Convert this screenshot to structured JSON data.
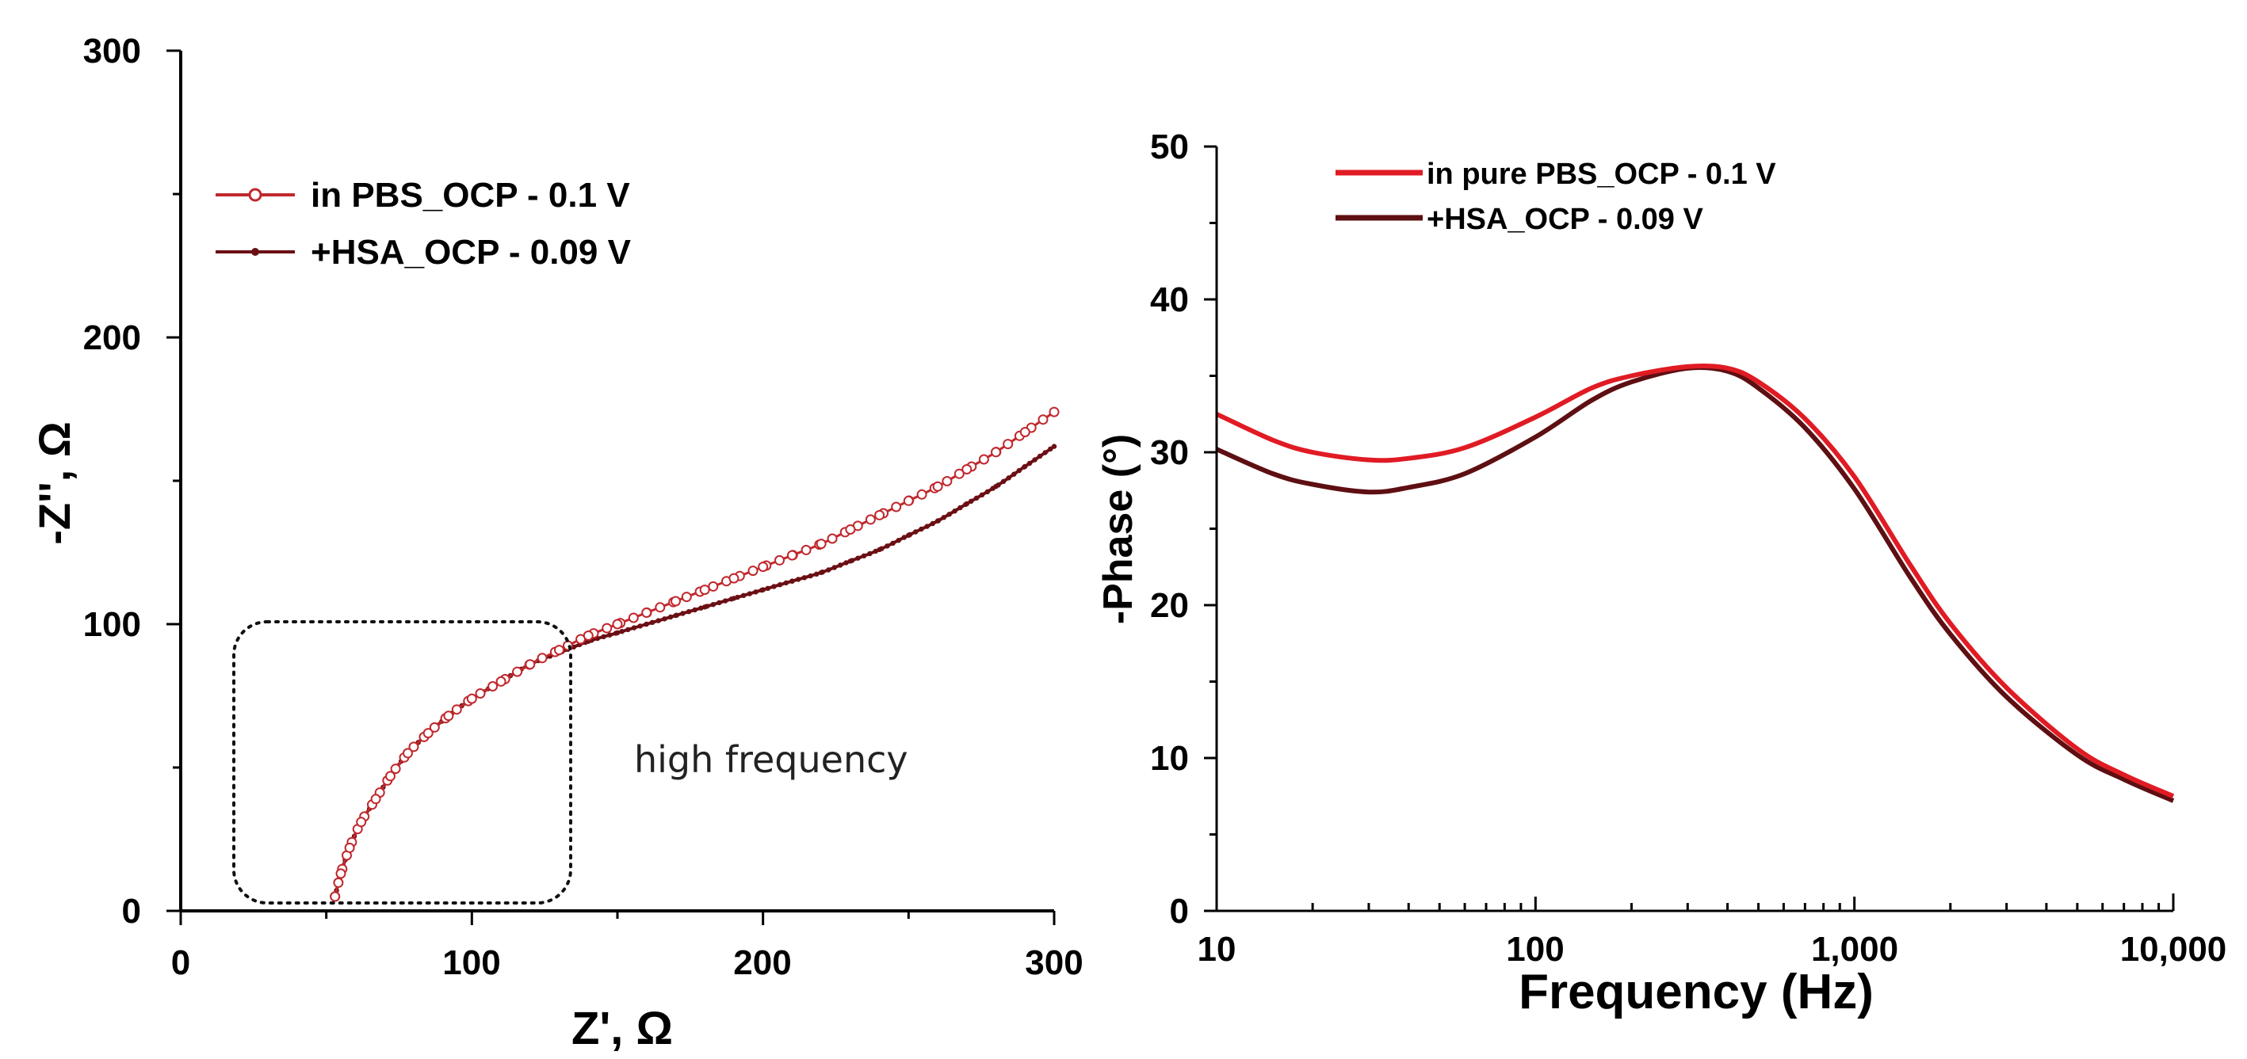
{
  "chart_data": [
    {
      "type": "scatter",
      "plot": "nyquist",
      "title": "",
      "xlabel": "Z', Ω",
      "ylabel": "-Z'', Ω",
      "xlim": [
        0,
        300
      ],
      "ylim": [
        0,
        300
      ],
      "xticks": [
        "0",
        "100",
        "200",
        "300"
      ],
      "yticks": [
        "0",
        "100",
        "200",
        "300"
      ],
      "legend_position": "top-left",
      "annotation": "high frequency",
      "series": [
        {
          "name": "in PBS_OCP - 0.1 V",
          "color": "#c0282d",
          "marker": "open-circle",
          "x": [
            53,
            55,
            58,
            62,
            67,
            72,
            78,
            85,
            92,
            100,
            110,
            120,
            130,
            140,
            150,
            160,
            170,
            180,
            190,
            200,
            210,
            220,
            230,
            240,
            250,
            260,
            270,
            280,
            290,
            300
          ],
          "y": [
            5,
            13,
            22,
            31,
            39,
            47,
            55,
            62,
            68,
            74,
            80,
            86,
            91,
            96,
            100,
            104,
            108,
            112,
            116,
            120,
            124,
            128,
            133,
            138,
            143,
            148,
            154,
            160,
            167,
            174
          ]
        },
        {
          "name": "+HSA_OCP - 0.09 V",
          "color": "#6b0f14",
          "marker": "filled-dot",
          "x": [
            53,
            55,
            58,
            62,
            67,
            72,
            78,
            85,
            92,
            100,
            110,
            120,
            130,
            140,
            150,
            160,
            170,
            180,
            190,
            200,
            210,
            220,
            230,
            240,
            250,
            260,
            270,
            280,
            290,
            300
          ],
          "y": [
            5,
            13,
            22,
            31,
            39,
            47,
            55,
            62,
            68,
            74,
            80,
            86,
            90,
            94,
            97,
            100,
            103,
            106,
            109,
            112,
            115,
            118,
            122,
            126,
            131,
            136,
            142,
            148,
            155,
            162
          ]
        }
      ]
    },
    {
      "type": "line",
      "plot": "bode-phase",
      "title": "",
      "xlabel": "Frequency (Hz)",
      "ylabel": "-Phase (°)",
      "xscale": "log",
      "xlim": [
        10,
        10000
      ],
      "ylim": [
        0,
        50
      ],
      "xticks": [
        "10",
        "100",
        "1,000",
        "10,000"
      ],
      "yticks": [
        "0",
        "10",
        "20",
        "30",
        "40",
        "50"
      ],
      "legend_position": "top-left",
      "series": [
        {
          "name": "in pure PBS_OCP - 0.1 V",
          "color": "#e01b24",
          "x": [
            10,
            15,
            20,
            30,
            40,
            60,
            100,
            150,
            200,
            300,
            400,
            500,
            700,
            1000,
            1500,
            2000,
            3000,
            5000,
            7000,
            10000
          ],
          "y": [
            32.5,
            30.8,
            30.0,
            29.5,
            29.6,
            30.3,
            32.3,
            34.2,
            35.0,
            35.6,
            35.5,
            34.6,
            32.2,
            28.4,
            22.6,
            18.8,
            14.6,
            10.6,
            8.9,
            7.5
          ]
        },
        {
          "name": "+HSA_OCP - 0.09 V",
          "color": "#5e0f12",
          "x": [
            10,
            15,
            20,
            30,
            40,
            60,
            100,
            150,
            200,
            300,
            400,
            500,
            700,
            1000,
            1500,
            2000,
            3000,
            5000,
            7000,
            10000
          ],
          "y": [
            30.2,
            28.6,
            27.9,
            27.4,
            27.7,
            28.6,
            31.0,
            33.4,
            34.6,
            35.5,
            35.3,
            34.2,
            31.6,
            27.6,
            21.8,
            18.1,
            14.0,
            10.2,
            8.6,
            7.2
          ]
        }
      ]
    }
  ]
}
